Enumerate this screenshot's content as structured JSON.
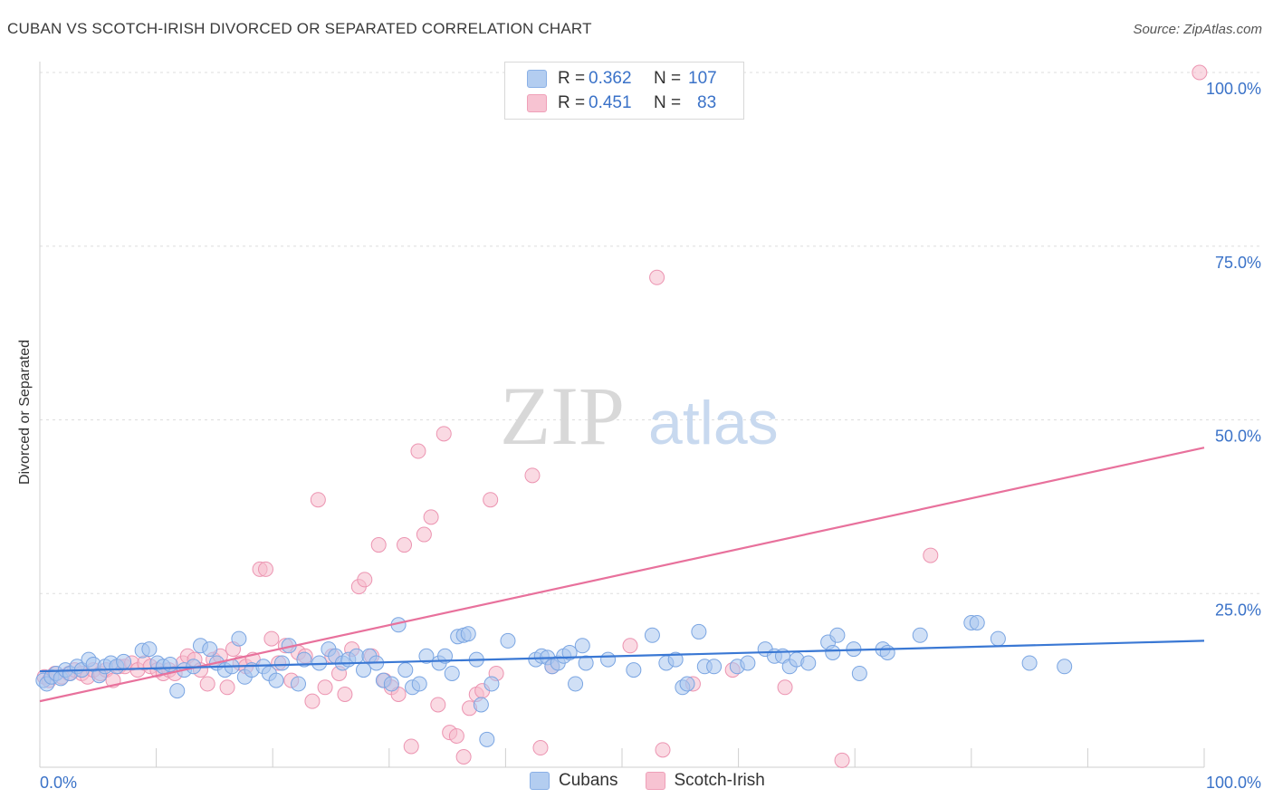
{
  "title": "CUBAN VS SCOTCH-IRISH DIVORCED OR SEPARATED CORRELATION CHART",
  "source": "Source: ZipAtlas.com",
  "watermark": {
    "zip": "ZIP",
    "atlas": "atlas"
  },
  "legend": {
    "cubans": {
      "r_label": "R =",
      "r_value": "0.362",
      "n_label": "N =",
      "n_value": "107"
    },
    "scotch": {
      "r_label": "R =",
      "r_value": "0.451",
      "n_label": "N =",
      "n_value": "83"
    }
  },
  "bottom_legend": {
    "cubans": "Cubans",
    "scotch": "Scotch-Irish"
  },
  "colors": {
    "blue": "#3a78d4",
    "pink": "#e8719c",
    "blue_fill": "#a9c6ef",
    "pink_fill": "#f5bccc",
    "tick_text": "#3a72c8"
  },
  "chart_data": {
    "type": "scatter",
    "title": "CUBAN VS SCOTCH-IRISH DIVORCED OR SEPARATED CORRELATION CHART",
    "xlabel": "",
    "ylabel": "Divorced or Separated",
    "xlim": [
      0,
      100
    ],
    "ylim": [
      0,
      100
    ],
    "x_tick_labels": [
      "0.0%",
      "100.0%"
    ],
    "y_tick_labels": [
      "25.0%",
      "50.0%",
      "75.0%",
      "100.0%"
    ],
    "y_ticks": [
      25,
      50,
      75,
      100
    ],
    "grid": true,
    "legend_position": "top-center",
    "series": [
      {
        "name": "Cubans",
        "color": "#3a78d4",
        "R": 0.362,
        "N": 107,
        "trend": [
          [
            0,
            13.8
          ],
          [
            100,
            18.2
          ]
        ],
        "points": [
          [
            0.3,
            12.5
          ],
          [
            0.6,
            12.0
          ],
          [
            1.0,
            13.0
          ],
          [
            1.4,
            13.5
          ],
          [
            1.8,
            12.8
          ],
          [
            2.2,
            14.0
          ],
          [
            2.6,
            13.5
          ],
          [
            3.2,
            14.5
          ],
          [
            3.6,
            14.0
          ],
          [
            4.2,
            15.5
          ],
          [
            4.6,
            14.8
          ],
          [
            5.1,
            13.2
          ],
          [
            5.6,
            14.5
          ],
          [
            6.1,
            15.0
          ],
          [
            6.6,
            14.5
          ],
          [
            7.2,
            15.2
          ],
          [
            8.8,
            16.8
          ],
          [
            9.4,
            17.0
          ],
          [
            10.1,
            15.0
          ],
          [
            10.6,
            14.5
          ],
          [
            11.2,
            14.8
          ],
          [
            11.8,
            11.0
          ],
          [
            12.4,
            14.0
          ],
          [
            13.2,
            14.5
          ],
          [
            13.8,
            17.5
          ],
          [
            14.6,
            17.0
          ],
          [
            15.2,
            15.0
          ],
          [
            15.9,
            14.0
          ],
          [
            16.5,
            14.5
          ],
          [
            17.1,
            18.5
          ],
          [
            17.6,
            13.0
          ],
          [
            18.2,
            14.0
          ],
          [
            19.2,
            14.5
          ],
          [
            19.7,
            13.5
          ],
          [
            20.3,
            12.5
          ],
          [
            20.8,
            15.0
          ],
          [
            21.4,
            17.5
          ],
          [
            22.2,
            12.0
          ],
          [
            22.7,
            15.5
          ],
          [
            24.0,
            15.0
          ],
          [
            24.8,
            17.0
          ],
          [
            25.4,
            16.0
          ],
          [
            26.0,
            15.0
          ],
          [
            26.5,
            15.5
          ],
          [
            27.2,
            16.0
          ],
          [
            27.8,
            14.0
          ],
          [
            28.3,
            16.0
          ],
          [
            28.9,
            15.0
          ],
          [
            29.5,
            12.5
          ],
          [
            30.2,
            12.0
          ],
          [
            30.8,
            20.5
          ],
          [
            31.4,
            14.0
          ],
          [
            32.0,
            11.5
          ],
          [
            32.6,
            12.0
          ],
          [
            33.2,
            16.0
          ],
          [
            34.3,
            15.0
          ],
          [
            34.8,
            16.0
          ],
          [
            35.4,
            13.5
          ],
          [
            35.9,
            18.8
          ],
          [
            36.4,
            19.0
          ],
          [
            36.8,
            19.2
          ],
          [
            37.5,
            15.5
          ],
          [
            37.9,
            9.0
          ],
          [
            38.4,
            4.0
          ],
          [
            38.8,
            12.0
          ],
          [
            40.2,
            18.2
          ],
          [
            42.6,
            15.5
          ],
          [
            43.1,
            16.0
          ],
          [
            43.6,
            15.8
          ],
          [
            44.0,
            14.5
          ],
          [
            44.5,
            15.0
          ],
          [
            45.0,
            16.0
          ],
          [
            45.5,
            16.5
          ],
          [
            46.0,
            12.0
          ],
          [
            46.6,
            17.5
          ],
          [
            46.9,
            15.0
          ],
          [
            48.8,
            15.5
          ],
          [
            51.0,
            14.0
          ],
          [
            52.6,
            19.0
          ],
          [
            53.8,
            15.0
          ],
          [
            54.6,
            15.5
          ],
          [
            55.2,
            11.5
          ],
          [
            55.6,
            12.0
          ],
          [
            56.6,
            19.5
          ],
          [
            57.1,
            14.5
          ],
          [
            57.9,
            14.5
          ],
          [
            59.9,
            14.5
          ],
          [
            60.8,
            15.0
          ],
          [
            62.3,
            17.0
          ],
          [
            63.1,
            16.0
          ],
          [
            63.8,
            16.0
          ],
          [
            64.4,
            14.5
          ],
          [
            65.0,
            15.5
          ],
          [
            66.0,
            15.0
          ],
          [
            67.7,
            18.0
          ],
          [
            68.1,
            16.5
          ],
          [
            68.5,
            19.0
          ],
          [
            69.9,
            17.0
          ],
          [
            70.4,
            13.5
          ],
          [
            72.4,
            17.0
          ],
          [
            72.8,
            16.5
          ],
          [
            75.6,
            19.0
          ],
          [
            80.0,
            20.8
          ],
          [
            80.5,
            20.8
          ],
          [
            82.3,
            18.5
          ],
          [
            85.0,
            15.0
          ],
          [
            88.0,
            14.5
          ]
        ]
      },
      {
        "name": "Scotch-Irish",
        "color": "#e8719c",
        "R": 0.451,
        "N": 83,
        "trend": [
          [
            0,
            9.5
          ],
          [
            100,
            46.0
          ]
        ],
        "points": [
          [
            0.4,
            13.0
          ],
          [
            0.8,
            12.5
          ],
          [
            1.3,
            13.5
          ],
          [
            1.9,
            13.0
          ],
          [
            2.5,
            13.5
          ],
          [
            3.0,
            14.0
          ],
          [
            3.6,
            13.5
          ],
          [
            4.1,
            13.0
          ],
          [
            4.6,
            14.0
          ],
          [
            5.2,
            13.5
          ],
          [
            5.7,
            14.0
          ],
          [
            6.3,
            12.5
          ],
          [
            6.8,
            14.5
          ],
          [
            7.3,
            14.5
          ],
          [
            7.9,
            15.0
          ],
          [
            8.4,
            14.0
          ],
          [
            9.0,
            15.0
          ],
          [
            9.5,
            14.5
          ],
          [
            10.1,
            14.0
          ],
          [
            10.6,
            13.5
          ],
          [
            11.1,
            14.0
          ],
          [
            11.6,
            13.5
          ],
          [
            12.3,
            15.0
          ],
          [
            12.7,
            16.0
          ],
          [
            13.3,
            15.5
          ],
          [
            13.8,
            14.0
          ],
          [
            14.4,
            12.0
          ],
          [
            14.9,
            15.5
          ],
          [
            15.5,
            16.0
          ],
          [
            16.1,
            11.5
          ],
          [
            16.6,
            17.0
          ],
          [
            17.2,
            15.0
          ],
          [
            17.7,
            14.5
          ],
          [
            18.3,
            15.5
          ],
          [
            18.9,
            28.5
          ],
          [
            19.4,
            28.5
          ],
          [
            19.9,
            18.5
          ],
          [
            20.5,
            15.0
          ],
          [
            21.1,
            17.5
          ],
          [
            21.6,
            12.5
          ],
          [
            22.2,
            16.5
          ],
          [
            22.8,
            16.0
          ],
          [
            23.4,
            9.5
          ],
          [
            23.9,
            38.5
          ],
          [
            24.5,
            11.5
          ],
          [
            25.1,
            16.0
          ],
          [
            25.7,
            13.5
          ],
          [
            26.2,
            10.5
          ],
          [
            26.8,
            17.0
          ],
          [
            27.4,
            26.0
          ],
          [
            27.9,
            27.0
          ],
          [
            28.5,
            16.0
          ],
          [
            29.1,
            32.0
          ],
          [
            29.6,
            12.5
          ],
          [
            30.2,
            11.5
          ],
          [
            30.8,
            10.5
          ],
          [
            31.3,
            32.0
          ],
          [
            31.9,
            3.0
          ],
          [
            32.5,
            45.5
          ],
          [
            33.0,
            33.5
          ],
          [
            33.6,
            36.0
          ],
          [
            34.2,
            9.0
          ],
          [
            34.7,
            48.0
          ],
          [
            35.2,
            5.0
          ],
          [
            35.8,
            4.5
          ],
          [
            36.4,
            1.5
          ],
          [
            36.9,
            8.5
          ],
          [
            37.5,
            10.5
          ],
          [
            38.0,
            11.0
          ],
          [
            38.7,
            38.5
          ],
          [
            39.2,
            13.5
          ],
          [
            42.3,
            42.0
          ],
          [
            43.0,
            2.8
          ],
          [
            44.0,
            14.5
          ],
          [
            50.7,
            17.5
          ],
          [
            53.0,
            70.5
          ],
          [
            53.5,
            2.5
          ],
          [
            56.1,
            12.0
          ],
          [
            59.5,
            14.0
          ],
          [
            64.0,
            11.5
          ],
          [
            68.9,
            1.0
          ],
          [
            76.5,
            30.5
          ],
          [
            99.6,
            100.0
          ]
        ]
      }
    ]
  }
}
